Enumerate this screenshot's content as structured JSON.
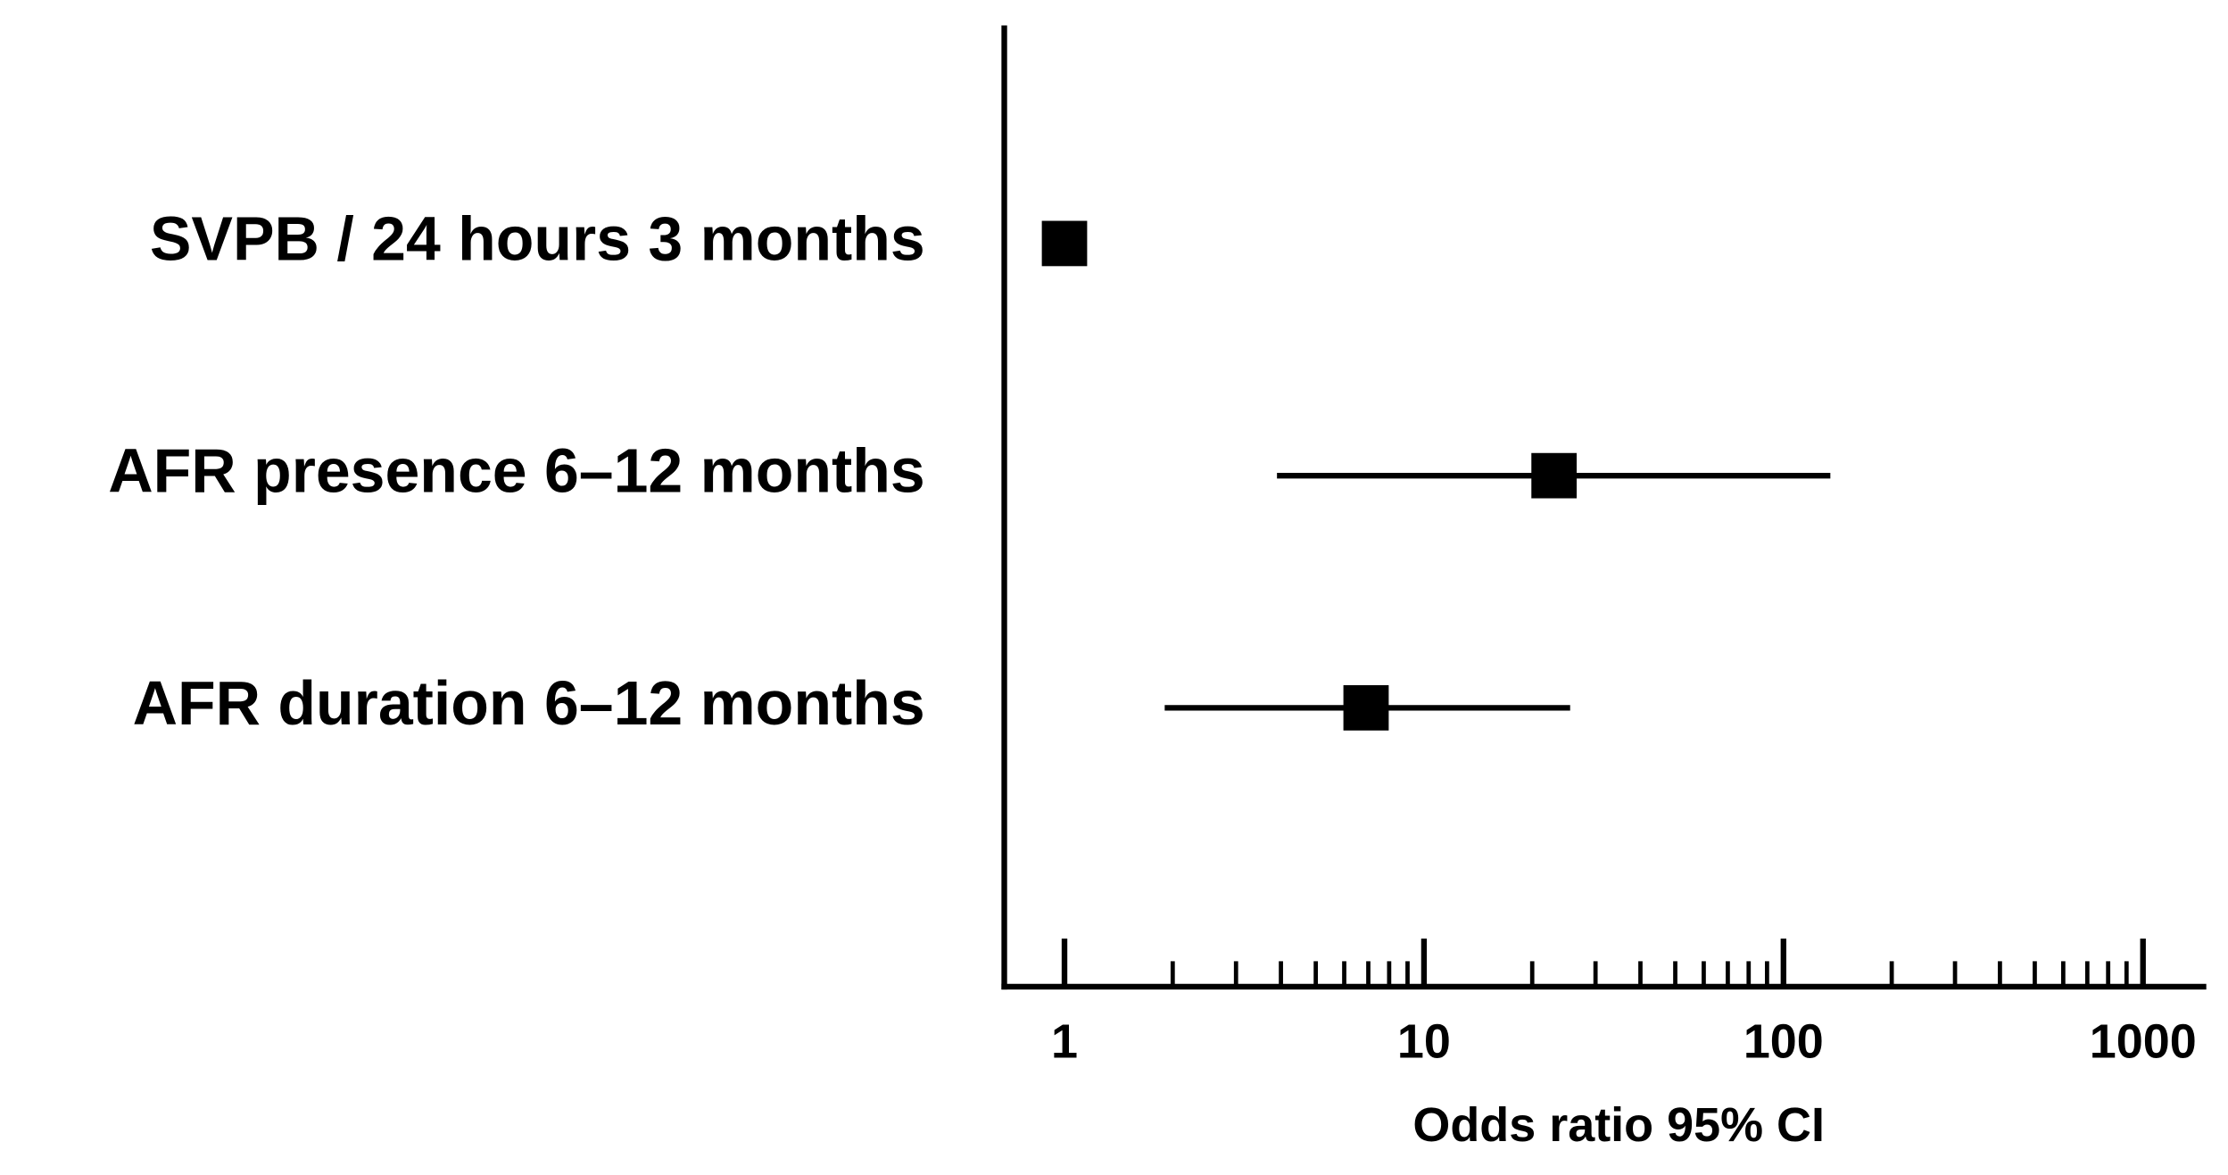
{
  "chart_data": {
    "type": "forest",
    "categories": [
      "SVPB / 24 hours 3 months",
      "AFR presence 6–12 months",
      "AFR duration 6–12 months"
    ],
    "values": [
      1.0,
      23,
      6.9
    ],
    "lower": [
      null,
      3.9,
      1.9
    ],
    "upper": [
      null,
      135,
      25.5
    ],
    "color": "#000000",
    "xlabel": "Odds  ratio 95% CI",
    "xscale": "log",
    "xlim": [
      0.68,
      1500
    ],
    "xticks": [
      1,
      10,
      100,
      1000
    ],
    "xminorticks": [
      2,
      3,
      4,
      5,
      6,
      7,
      8,
      9,
      20,
      30,
      40,
      50,
      60,
      70,
      80,
      90,
      200,
      300,
      400,
      500,
      600,
      700,
      800,
      900
    ]
  }
}
